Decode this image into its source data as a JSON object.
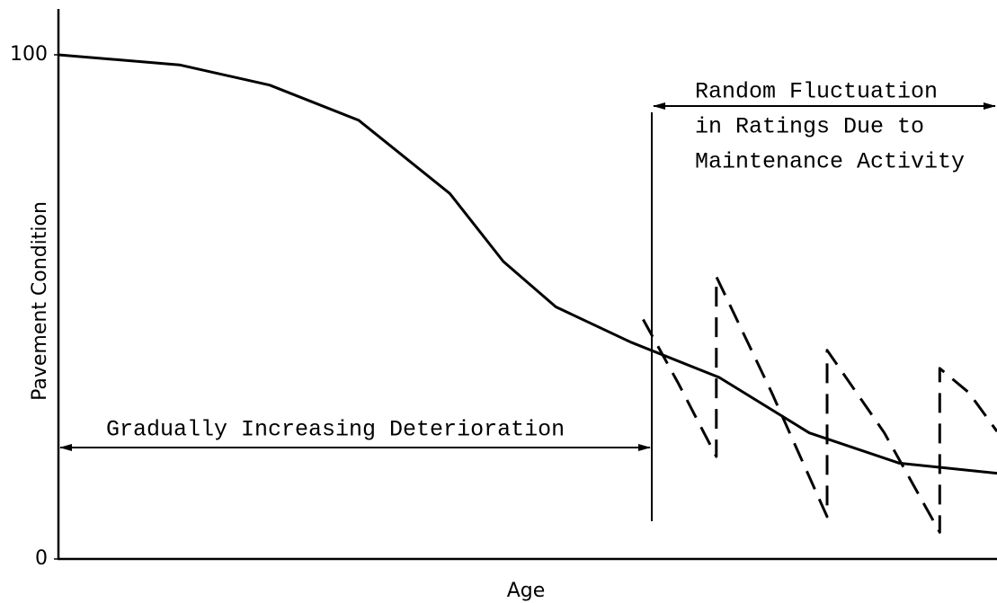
{
  "chart_data": {
    "type": "line",
    "xlabel": "Age",
    "ylabel": "Pavement Condition",
    "xlim": [
      0,
      100
    ],
    "ylim": [
      0,
      109
    ],
    "yticks": [
      0,
      100
    ],
    "annotations": [
      "Random Fluctuation",
      "in Ratings Due to",
      "Maintenance Activity",
      "Gradually Increasing Deterioration"
    ],
    "series": [
      {
        "color": "#000000",
        "style": "solid",
        "x": [
          0,
          12.9,
          22.5,
          32,
          41.7,
          47.4,
          53,
          61,
          70.4,
          80,
          89.6,
          100
        ],
        "values": [
          100,
          98,
          94,
          87,
          72.5,
          59,
          50,
          43,
          36,
          25,
          19,
          17
        ]
      },
      {
        "color": "#000000",
        "style": "dashed",
        "x": [
          62.3,
          66,
          70.1,
          70.1,
          76,
          81.9,
          81.9,
          88,
          93.9,
          93.9,
          97,
          100
        ],
        "values": [
          47.5,
          35,
          20.3,
          56,
          33,
          8.4,
          41.4,
          25,
          5.3,
          37.8,
          33,
          25.3
        ]
      }
    ]
  }
}
